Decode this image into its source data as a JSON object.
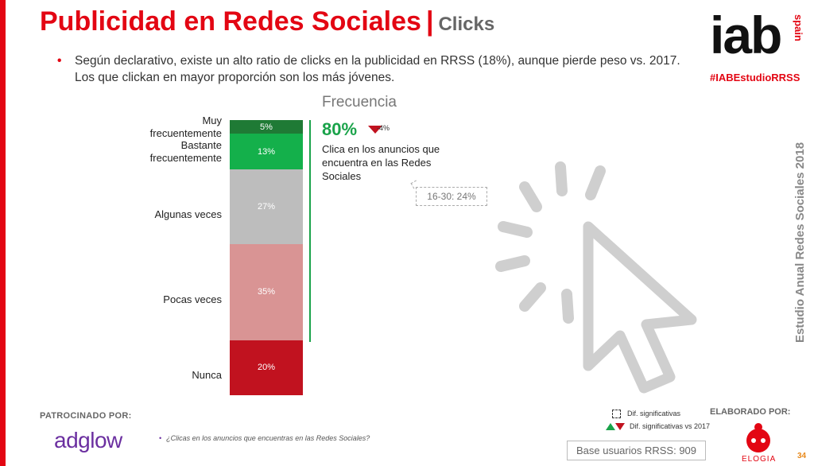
{
  "header": {
    "title": "Publicidad en Redes Sociales",
    "separator": "|",
    "subtitle": "Clicks",
    "bullet": "Según declarativo, existe un alto ratio de clicks en la publicidad en RRSS (18%), aunque pierde peso vs. 2017. Los que clickan en mayor proporción son los más jóvenes."
  },
  "brand": {
    "logo_text": "iab",
    "logo_country": "spain",
    "hashtag": "#IABEstudioRRSS",
    "side_text": "Estudio Anual Redes Sociales 2018"
  },
  "chart_data": {
    "type": "bar",
    "stacked": true,
    "title": "Frecuencia",
    "categories": [
      "Muy frecuentemente",
      "Bastante frecuentemente",
      "Algunas veces",
      "Pocas veces",
      "Nunca"
    ],
    "values": [
      5,
      13,
      27,
      35,
      20
    ],
    "labels": [
      "5%",
      "13%",
      "27%",
      "35%",
      "20%"
    ],
    "colors": [
      "#1f7a35",
      "#14b04b",
      "#bdbdbd",
      "#d99494",
      "#c1121f"
    ],
    "annotation": {
      "value": "80%",
      "change_label": "-4%",
      "description": "Clica en los anuncios que encuentra en las Redes Sociales",
      "callout": "16-30: 24%"
    }
  },
  "footer": {
    "sponsor_label": "PATROCINADO POR:",
    "sponsor_name": "adglow",
    "question": "¿Clicas en los anuncios que encuentras en las Redes Sociales?",
    "legend_dif": "Dif. significativas",
    "legend_dif_2017": "Dif. significativas vs 2017",
    "base": "Base usuarios RRSS: 909",
    "elaborado_label": "ELABORADO POR:",
    "elaborado_name": "ELOGIA",
    "page_number": "34"
  }
}
